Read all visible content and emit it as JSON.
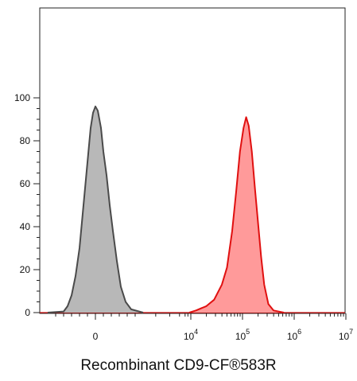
{
  "chart_data": {
    "type": "area",
    "title": "",
    "xlabel": "Recombinant CD9-CF®583R",
    "ylabel": "",
    "xscale": "biexponential",
    "ylim": [
      0,
      105
    ],
    "y_ticks": [
      0,
      20,
      40,
      60,
      80,
      100
    ],
    "x_tick_labels": [
      {
        "base": "0",
        "exp": ""
      },
      {
        "base": "10",
        "exp": "4"
      },
      {
        "base": "10",
        "exp": "5"
      },
      {
        "base": "10",
        "exp": "6"
      },
      {
        "base": "10",
        "exp": "7"
      }
    ],
    "grid": false,
    "legend": "none",
    "series": [
      {
        "fill": "#b8b8b8",
        "stroke": "#4a4a4a",
        "points": [
          [
            -0.6,
            0
          ],
          [
            -0.4,
            0.5
          ],
          [
            -0.35,
            3
          ],
          [
            -0.3,
            8
          ],
          [
            -0.25,
            17
          ],
          [
            -0.2,
            30
          ],
          [
            -0.15,
            50
          ],
          [
            -0.1,
            70
          ],
          [
            -0.06,
            86
          ],
          [
            -0.03,
            93
          ],
          [
            0.0,
            96
          ],
          [
            0.03,
            94
          ],
          [
            0.07,
            86
          ],
          [
            0.1,
            75
          ],
          [
            0.14,
            64
          ],
          [
            0.18,
            50
          ],
          [
            0.22,
            38
          ],
          [
            0.27,
            24
          ],
          [
            0.32,
            12
          ],
          [
            0.38,
            5
          ],
          [
            0.45,
            1.5
          ],
          [
            0.6,
            0
          ]
        ]
      },
      {
        "fill": "#ff9a9a",
        "stroke": "#e01010",
        "points": [
          [
            3.9,
            0
          ],
          [
            4.1,
            1
          ],
          [
            4.3,
            3
          ],
          [
            4.45,
            6
          ],
          [
            4.6,
            13
          ],
          [
            4.7,
            21
          ],
          [
            4.8,
            38
          ],
          [
            4.88,
            57
          ],
          [
            4.95,
            75
          ],
          [
            5.02,
            86
          ],
          [
            5.07,
            91
          ],
          [
            5.12,
            87
          ],
          [
            5.18,
            75
          ],
          [
            5.24,
            58
          ],
          [
            5.3,
            42
          ],
          [
            5.36,
            26
          ],
          [
            5.42,
            13
          ],
          [
            5.5,
            4
          ],
          [
            5.6,
            1
          ],
          [
            5.8,
            0
          ]
        ]
      }
    ]
  }
}
